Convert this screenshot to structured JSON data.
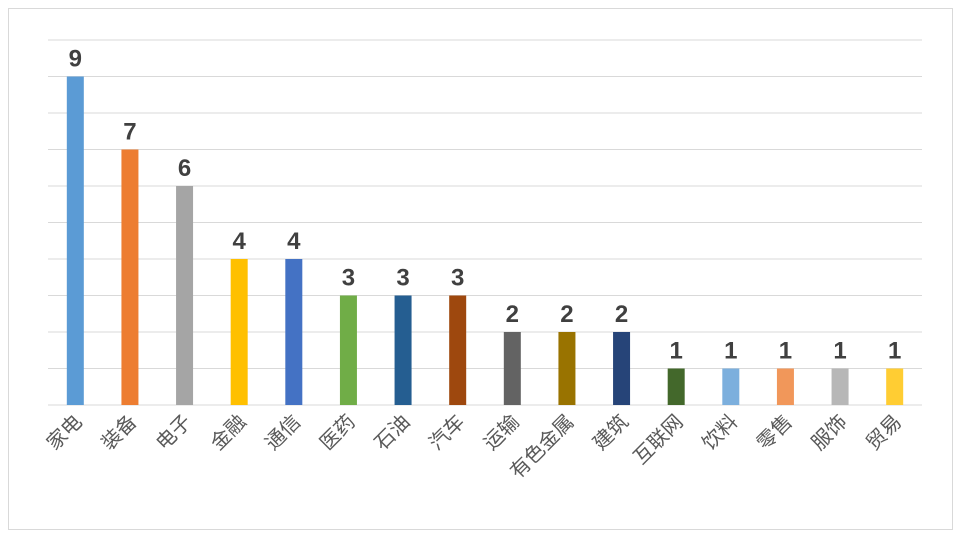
{
  "chart_data": {
    "type": "bar",
    "title": "",
    "xlabel": "",
    "ylabel": "",
    "ylim": [
      0,
      10
    ],
    "grid": true,
    "legend": "none",
    "categories": [
      "家电",
      "装备",
      "电子",
      "金融",
      "通信",
      "医药",
      "石油",
      "汽车",
      "运输",
      "有色金属",
      "建筑",
      "互联网",
      "饮料",
      "零售",
      "服饰",
      "贸易"
    ],
    "values": [
      9,
      7,
      6,
      4,
      4,
      3,
      3,
      3,
      2,
      2,
      2,
      1,
      1,
      1,
      1,
      1
    ],
    "colors": [
      "#5b9bd5",
      "#ed7d31",
      "#a5a5a5",
      "#ffc000",
      "#4472c4",
      "#70ad47",
      "#255e91",
      "#9e480e",
      "#636363",
      "#997300",
      "#264478",
      "#43682b",
      "#7cafdd",
      "#f1975a",
      "#b7b7b7",
      "#ffcd33"
    ]
  }
}
